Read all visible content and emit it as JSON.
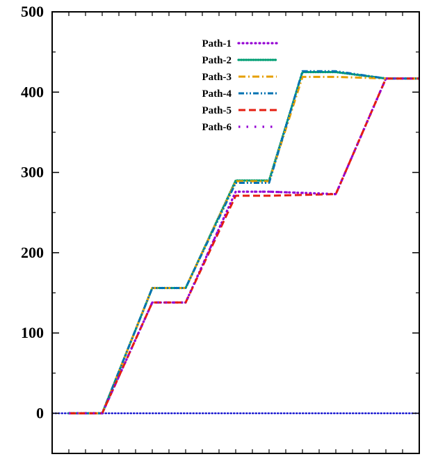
{
  "chart_data": {
    "type": "line",
    "title": "",
    "xlabel": "",
    "ylabel": "",
    "xlim": [
      0,
      22
    ],
    "ylim": [
      -50,
      500
    ],
    "yticks": [
      0,
      100,
      200,
      300,
      400,
      500
    ],
    "ytick_labels": [
      "0",
      "100",
      "200",
      "300",
      "400",
      "500"
    ],
    "x_minor_tick_count": 21,
    "y_minor_tick_step": 50,
    "grid": false,
    "legend_position": "top-center",
    "reference_line": {
      "y": 0,
      "color": "#0000cc",
      "style": "dotted"
    },
    "series": [
      {
        "name": "Path-1",
        "color": "#9400d3",
        "dash": "dotted",
        "x": [
          1,
          3,
          6,
          8,
          11,
          13,
          17,
          20,
          22
        ],
        "y": [
          0,
          0,
          138,
          138,
          276,
          276,
          273,
          417,
          417
        ]
      },
      {
        "name": "Path-2",
        "color": "#009e73",
        "dash": "dotted-dense",
        "x": [
          1,
          3,
          6,
          8,
          11,
          13,
          15,
          17,
          20,
          22
        ],
        "y": [
          0,
          0,
          156,
          156,
          290,
          290,
          425,
          425,
          417,
          417
        ]
      },
      {
        "name": "Path-3",
        "color": "#e69f00",
        "dash": "dash-dot",
        "x": [
          1,
          3,
          6,
          8,
          11,
          13,
          15,
          17,
          20,
          22
        ],
        "y": [
          0,
          0,
          156,
          156,
          289,
          289,
          419,
          419,
          417,
          417
        ]
      },
      {
        "name": "Path-4",
        "color": "#0072b2",
        "dash": "dash-dot-dot",
        "x": [
          1,
          3,
          6,
          8,
          11,
          13,
          15,
          17,
          20,
          22
        ],
        "y": [
          0,
          0,
          156,
          156,
          287,
          287,
          426,
          426,
          417,
          417
        ]
      },
      {
        "name": "Path-5",
        "color": "#e51e10",
        "dash": "dashed",
        "x": [
          1,
          3,
          6,
          8,
          11,
          13,
          17,
          20,
          22
        ],
        "y": [
          0,
          0,
          138,
          138,
          271,
          271,
          273,
          417,
          417
        ]
      },
      {
        "name": "Path-6",
        "color": "#9400d3",
        "dash": "spaced-dots",
        "x": [
          1,
          3,
          6,
          8,
          11,
          13,
          17,
          20,
          22
        ],
        "y": [
          0,
          0,
          138,
          138,
          276,
          276,
          273,
          417,
          417
        ]
      }
    ]
  }
}
